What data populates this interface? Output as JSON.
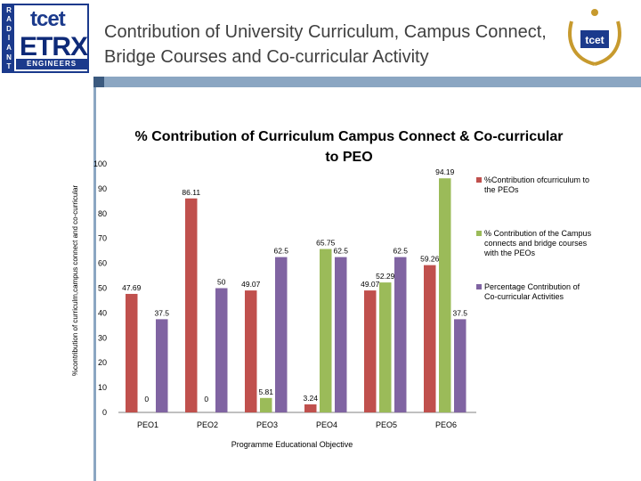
{
  "header": {
    "title": "Contribution of University Curriculum, Campus Connect, Bridge Courses and Co-curricular Activity",
    "logo_left": {
      "strip_letters": [
        "R",
        "A",
        "D",
        "I",
        "A",
        "N",
        "T"
      ],
      "top": "tcet",
      "middle": "ETRX",
      "bottom": "ENGINEERS"
    },
    "logo_right": {
      "text": "tcet"
    }
  },
  "colors": {
    "series1": "#c0504d",
    "series2": "#9bbb59",
    "series3": "#8064a2",
    "accent_bar": "#8ba6c2"
  },
  "chart_data": {
    "type": "bar",
    "title": "% Contribution of Curriculum Campus Connect & Co-curricular to PEO",
    "xlabel": "Programme Educational Objective",
    "ylabel": "%contribution of curriculm,campus connect and co-curricular",
    "ylim": [
      0,
      100
    ],
    "yticks": [
      "0",
      "10",
      "20",
      "30",
      "40",
      "50",
      "60",
      "70",
      "80",
      "90",
      "100"
    ],
    "categories": [
      "PEO1",
      "PEO2",
      "PEO3",
      "PEO4",
      "PEO5",
      "PEO6"
    ],
    "series": [
      {
        "name": "%Contribution ofcurriculum to the PEOs",
        "values": [
          47.69,
          86.11,
          49.07,
          3.24,
          49.07,
          59.26
        ],
        "labels": [
          "47.69",
          "86.11",
          "49.07",
          "3.24",
          "49.07",
          "59.26"
        ]
      },
      {
        "name": "% Contribution of the Campus connects and bridge courses with the PEOs",
        "values": [
          0,
          0,
          5.81,
          65.75,
          52.29,
          94.19
        ],
        "labels": [
          "0",
          "0",
          "5.81",
          "65.75",
          "52.29",
          "94.19"
        ]
      },
      {
        "name": "Percentage Contribution of Co-curricular Activities",
        "values": [
          37.5,
          50,
          62.5,
          62.5,
          62.5,
          37.5
        ],
        "labels": [
          "37.5",
          "50",
          "62.5",
          "62.5",
          "62.5",
          "37.5"
        ]
      }
    ]
  }
}
